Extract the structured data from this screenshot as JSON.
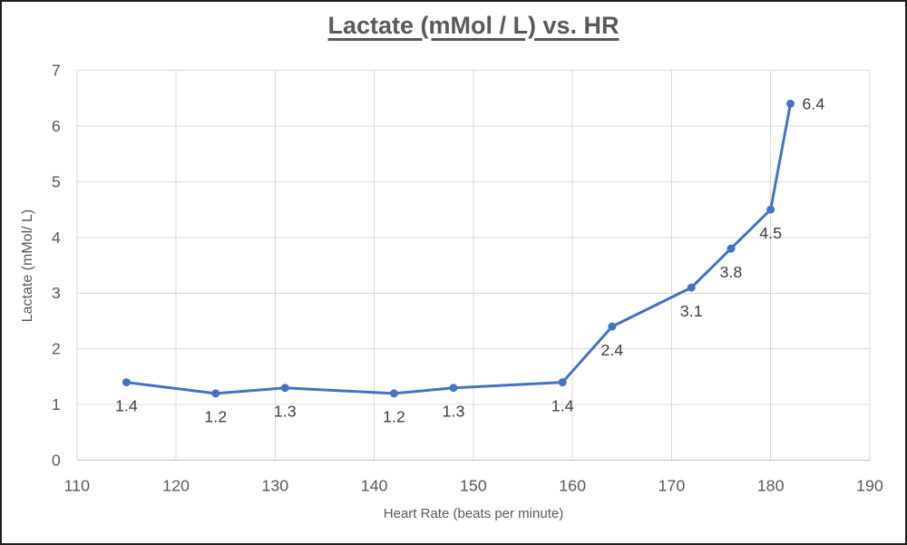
{
  "chart_data": {
    "type": "line",
    "title": "Lactate (mMol / L) vs. HR",
    "xlabel": "Heart Rate (beats per minute)",
    "ylabel": "Lactate (mMol/ L)",
    "x": [
      115,
      124,
      131,
      142,
      148,
      159,
      164,
      172,
      176,
      180,
      182
    ],
    "y": [
      1.4,
      1.2,
      1.3,
      1.2,
      1.3,
      1.4,
      2.4,
      3.1,
      3.8,
      4.5,
      6.4
    ],
    "point_labels": [
      "1.4",
      "1.2",
      "1.3",
      "1.2",
      "1.3",
      "1.4",
      "2.4",
      "3.1",
      "3.8",
      "4.5",
      "6.4"
    ],
    "point_label_positions": [
      "below",
      "below",
      "below",
      "below",
      "below",
      "below",
      "below",
      "below",
      "below",
      "below",
      "right"
    ],
    "xlim": [
      110,
      190
    ],
    "ylim": [
      0,
      7
    ],
    "xticks": [
      110,
      120,
      130,
      140,
      150,
      160,
      170,
      180,
      190
    ],
    "yticks": [
      0,
      1,
      2,
      3,
      4,
      5,
      6,
      7
    ],
    "grid": true,
    "legend": "none",
    "series_name": "Lactate"
  },
  "colors": {
    "line": "#4472C4",
    "marker": "#4472C4",
    "gridline": "#D9D9D9",
    "axis_line": "#C3C3C3",
    "tick_label": "#595959",
    "data_label": "#3F3F3F",
    "title": "#595959",
    "axis_title": "#595959",
    "background": "#FFFFFF",
    "frame_border": "#1F1F1F"
  }
}
